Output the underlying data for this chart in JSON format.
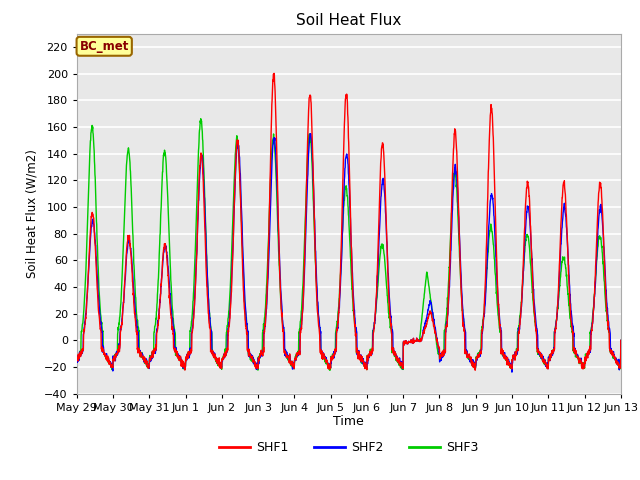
{
  "title": "Soil Heat Flux",
  "ylabel": "Soil Heat Flux (W/m2)",
  "xlabel": "Time",
  "ylim": [
    -40,
    230
  ],
  "yticks": [
    -40,
    -20,
    0,
    20,
    40,
    60,
    80,
    100,
    120,
    140,
    160,
    180,
    200,
    220
  ],
  "plot_bg_color": "#e8e8e8",
  "fig_bg_color": "#ffffff",
  "grid_color": "#ffffff",
  "legend_colors": [
    "#ff0000",
    "#0000ff",
    "#00cc00"
  ],
  "legend_entries": [
    "SHF1",
    "SHF2",
    "SHF3"
  ],
  "annotation_text": "BC_met",
  "annotation_bg": "#ffff99",
  "annotation_border": "#996600",
  "line_width": 1.0,
  "tick_labels": [
    "May 29",
    "May 30",
    "May 31",
    "Jun 1",
    "Jun 2",
    "Jun 3",
    "Jun 4",
    "Jun 5",
    "Jun 6",
    "Jun 7",
    "Jun 8",
    "Jun 9",
    "Jun 10",
    "Jun 11",
    "Jun 12",
    "Jun 13"
  ],
  "day_peaks_shf1": [
    95,
    78,
    72,
    140,
    150,
    200,
    185,
    185,
    148,
    0,
    157,
    175,
    118,
    118,
    118
  ],
  "day_peaks_shf2": [
    90,
    75,
    70,
    138,
    148,
    152,
    155,
    140,
    120,
    30,
    130,
    110,
    100,
    100,
    100
  ],
  "day_peaks_shf3": [
    160,
    143,
    142,
    165,
    152,
    152,
    155,
    115,
    72,
    52,
    127,
    85,
    80,
    62,
    78
  ],
  "night_floor": -28
}
